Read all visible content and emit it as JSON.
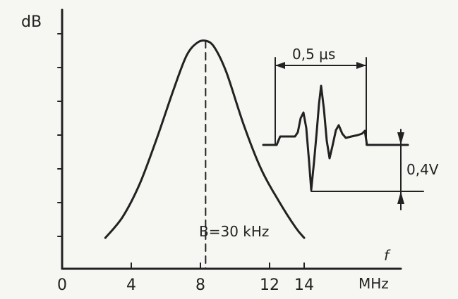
{
  "chart_data": {
    "type": "line",
    "ylabel": "dB",
    "xunit": "MHz",
    "f_label": "f",
    "x_ticks": [
      "0",
      "4",
      "8",
      "12",
      "14"
    ],
    "xlim": [
      0,
      16
    ],
    "series": [
      {
        "x": [
          2.5,
          3.5,
          4.5,
          5.5,
          6.5,
          7.2,
          7.8,
          8.3,
          8.8,
          9.5,
          10.5,
          11.5,
          12.5,
          13.5,
          14.0
        ],
        "y": [
          0.06,
          0.16,
          0.32,
          0.54,
          0.78,
          0.93,
          0.99,
          1.0,
          0.97,
          0.85,
          0.6,
          0.39,
          0.24,
          0.11,
          0.06
        ]
      }
    ],
    "center_freq_mhz": 8.3,
    "bandwidth_label": "B=30 kHz",
    "inset": {
      "time_label": "0,5 μs",
      "amplitude_label": "0,4V"
    }
  }
}
